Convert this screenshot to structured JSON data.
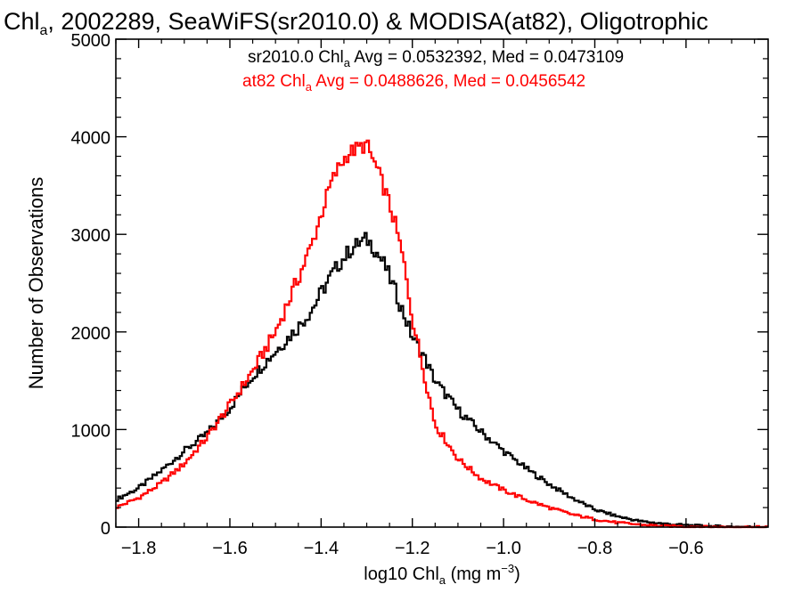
{
  "chart_data": {
    "type": "line",
    "title": {
      "prefix": "Chl",
      "subscript": "a",
      "rest": ", 2002289, SeaWiFS(sr2010.0) & MODISA(at82), Oligotrophic"
    },
    "xlabel": {
      "prefix": "log10 Chl",
      "subscript": "a",
      "mid": " (mg m",
      "superscript": "−3",
      "suffix": ")"
    },
    "ylabel": "Number of Observations",
    "xlim": [
      -1.85,
      -0.42
    ],
    "ylim": [
      0,
      5000
    ],
    "x_ticks": [
      -1.8,
      -1.6,
      -1.4,
      -1.2,
      -1.0,
      -0.8,
      -0.6
    ],
    "x_tick_labels": [
      "−1.8",
      "−1.6",
      "−1.4",
      "−1.2",
      "−1.0",
      "−0.8",
      "−0.6"
    ],
    "y_ticks": [
      0,
      1000,
      2000,
      3000,
      4000,
      5000
    ],
    "y_tick_labels": [
      "0",
      "1000",
      "2000",
      "3000",
      "4000",
      "5000"
    ],
    "grid": false,
    "legend_position": "top-right",
    "series": [
      {
        "name": "sr2010.0",
        "color": "#000000",
        "legend": {
          "prefix": "sr2010.0 Chl",
          "subscript": "a",
          "suffix": " Avg = 0.0532392, Med = 0.0473109"
        },
        "x": [
          -1.85,
          -1.8,
          -1.75,
          -1.7,
          -1.65,
          -1.6,
          -1.55,
          -1.5,
          -1.45,
          -1.42,
          -1.4,
          -1.38,
          -1.36,
          -1.34,
          -1.32,
          -1.3,
          -1.29,
          -1.28,
          -1.26,
          -1.24,
          -1.22,
          -1.2,
          -1.18,
          -1.15,
          -1.1,
          -1.05,
          -1.0,
          -0.95,
          -0.9,
          -0.85,
          -0.8,
          -0.75,
          -0.7,
          -0.65,
          -0.6,
          -0.55,
          -0.5,
          -0.45,
          -0.42
        ],
        "y": [
          280,
          400,
          580,
          780,
          960,
          1220,
          1550,
          1800,
          2050,
          2230,
          2400,
          2560,
          2700,
          2820,
          2900,
          2950,
          2900,
          2830,
          2680,
          2450,
          2200,
          1950,
          1800,
          1500,
          1200,
          980,
          780,
          600,
          440,
          300,
          180,
          110,
          60,
          35,
          20,
          10,
          5,
          2,
          0
        ]
      },
      {
        "name": "at82",
        "color": "#ff0000",
        "legend": {
          "prefix": "at82 Chl",
          "subscript": "a",
          "suffix": " Avg = 0.0488626, Med = 0.0456542"
        },
        "x": [
          -1.85,
          -1.8,
          -1.75,
          -1.7,
          -1.65,
          -1.6,
          -1.55,
          -1.5,
          -1.45,
          -1.42,
          -1.4,
          -1.38,
          -1.36,
          -1.34,
          -1.32,
          -1.3,
          -1.29,
          -1.28,
          -1.26,
          -1.24,
          -1.22,
          -1.2,
          -1.18,
          -1.15,
          -1.1,
          -1.05,
          -1.0,
          -0.95,
          -0.9,
          -0.85,
          -0.8,
          -0.75,
          -0.7,
          -0.65,
          -0.6,
          -0.55,
          -0.5,
          -0.45,
          -0.42
        ],
        "y": [
          200,
          300,
          450,
          650,
          920,
          1250,
          1600,
          2000,
          2550,
          2900,
          3200,
          3500,
          3700,
          3830,
          3880,
          3920,
          3800,
          3700,
          3450,
          3150,
          2750,
          2150,
          1700,
          1050,
          700,
          500,
          380,
          280,
          200,
          130,
          80,
          45,
          25,
          12,
          6,
          3,
          1,
          0,
          0
        ]
      }
    ]
  }
}
